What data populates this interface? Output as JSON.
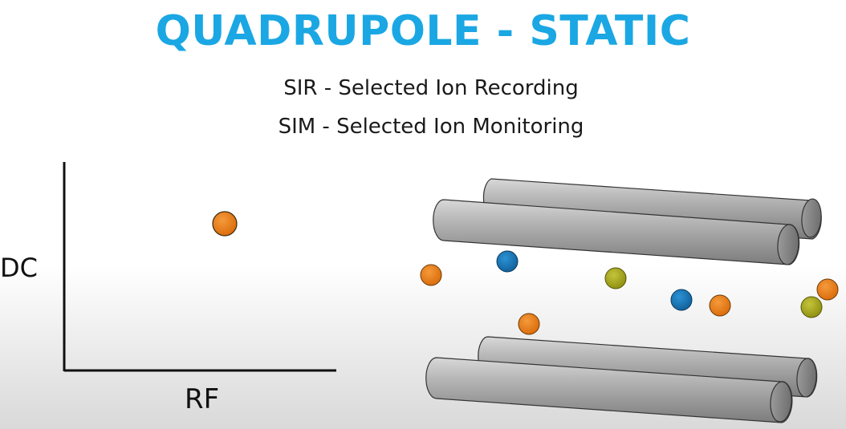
{
  "title": "QUADRUPOLE - STATIC",
  "subtitle_1": "SIR - Selected Ion Recording",
  "subtitle_2": "SIM - Selected Ion Monitoring",
  "plot": {
    "y_label": "DC",
    "x_label": "RF"
  },
  "colors": {
    "title": "#1aa7e3",
    "rod": "#9a9a9a",
    "ion_orange": "#e8750f",
    "ion_blue": "#1476b8",
    "ion_yellow": "#a8a814"
  },
  "icons": {
    "rods": "cylinder",
    "ions": "circle"
  }
}
